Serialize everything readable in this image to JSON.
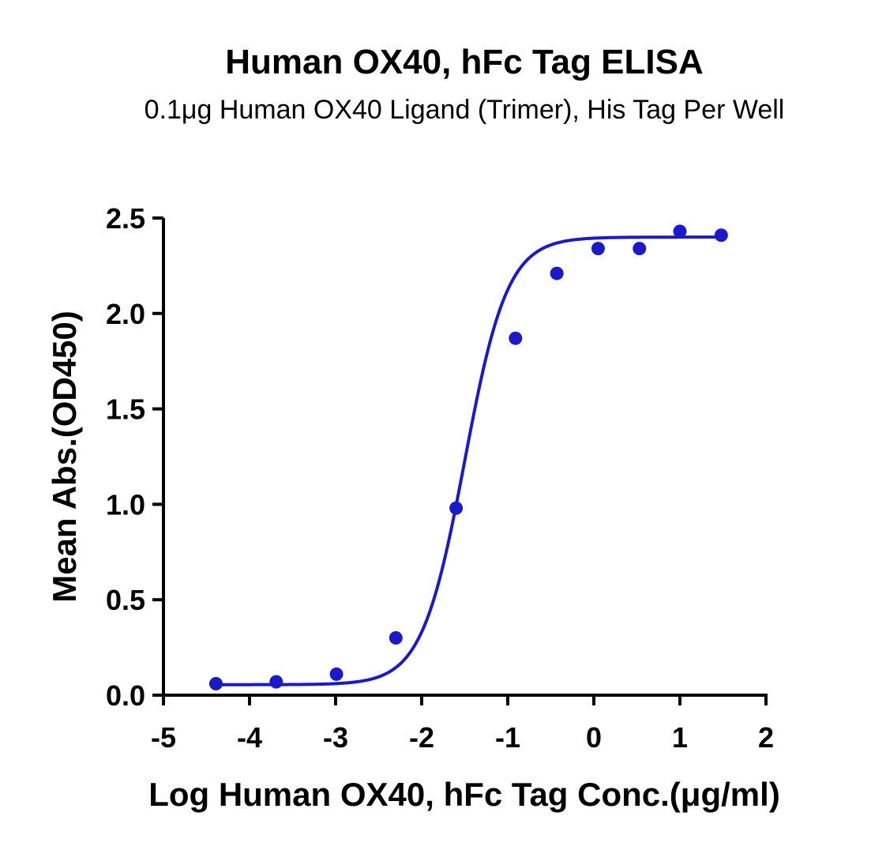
{
  "colors": {
    "series": "#1a1ac8",
    "axis": "#000000",
    "background": "#ffffff"
  },
  "chart_data": {
    "type": "scatter",
    "title": "Human OX40, hFc Tag ELISA",
    "subtitle": "0.1μg Human OX40 Ligand (Trimer), His Tag Per Well",
    "xlabel": "Log Human OX40, hFc Tag Conc.(μg/ml)",
    "ylabel": "Mean Abs.(OD450)",
    "xlim": [
      -5,
      2
    ],
    "ylim": [
      0,
      2.5
    ],
    "x_ticks": [
      "-5",
      "-4",
      "-3",
      "-2",
      "-1",
      "0",
      "1",
      "2"
    ],
    "y_ticks": [
      "0.0",
      "0.5",
      "1.0",
      "1.5",
      "2.0",
      "2.5"
    ],
    "grid": false,
    "legend": "none",
    "series": [
      {
        "x": [
          -4.39,
          -3.69,
          -2.99,
          -2.3,
          -1.6,
          -0.91,
          -0.43,
          0.05,
          0.53,
          1.0,
          1.48
        ],
        "y": [
          0.06,
          0.07,
          0.11,
          0.3,
          0.98,
          1.87,
          2.21,
          2.34,
          2.34,
          2.43,
          2.41
        ],
        "fit": "four-parameter-logistic"
      }
    ]
  }
}
